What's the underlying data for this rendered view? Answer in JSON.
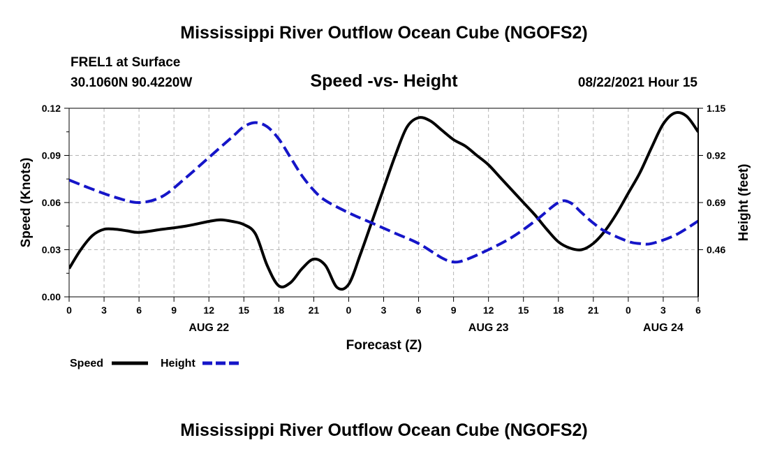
{
  "page": {
    "title_top": "Mississippi River Outflow Ocean Cube (NGOFS2)",
    "title_bottom": "Mississippi River Outflow Ocean Cube (NGOFS2)",
    "station": "FREL1 at Surface",
    "coords": "30.1060N  90.4220W",
    "date": "08/22/2021 Hour 15"
  },
  "chart_data": {
    "type": "line",
    "title": "Speed -vs- Height",
    "xlabel": "Forecast (Z)",
    "ylabel": "Speed (Knots)",
    "y2label": "Height (feet)",
    "xlim": [
      0,
      54
    ],
    "ylim": [
      0,
      0.12
    ],
    "y2lim": [
      0.23,
      1.15
    ],
    "x_ticks": [
      0,
      3,
      6,
      9,
      12,
      15,
      18,
      21,
      24,
      27,
      30,
      33,
      36,
      39,
      42,
      45,
      48,
      51,
      54
    ],
    "x_tick_labels": [
      "0",
      "3",
      "6",
      "9",
      "12",
      "15",
      "18",
      "21",
      "0",
      "3",
      "6",
      "9",
      "12",
      "15",
      "18",
      "21",
      "0",
      "3",
      "6"
    ],
    "date_labels": [
      {
        "x": 12,
        "text": "AUG 22"
      },
      {
        "x": 36,
        "text": "AUG 23"
      },
      {
        "x": 51,
        "text": "AUG 24"
      }
    ],
    "y_ticks": [
      0,
      0.03,
      0.06,
      0.09,
      0.12
    ],
    "y_tick_labels": [
      "0.00",
      "0.03",
      "0.06",
      "0.09",
      "0.12"
    ],
    "y2_ticks": [
      0.46,
      0.69,
      0.92,
      1.15
    ],
    "y2_tick_labels": [
      "0.46",
      "0.69",
      "0.92",
      "1.15"
    ],
    "grid": true,
    "legend": [
      {
        "name": "Speed",
        "color": "#000000",
        "style": "solid"
      },
      {
        "name": "Height",
        "color": "#1515c8",
        "style": "dashed"
      }
    ],
    "series": [
      {
        "name": "Speed",
        "axis": "left",
        "color": "#000000",
        "x": [
          0,
          1,
          2,
          3,
          4,
          5,
          6,
          8,
          10,
          12,
          13,
          14,
          15,
          16,
          17,
          18,
          19,
          20,
          21,
          22,
          23,
          24,
          25,
          26,
          27,
          28,
          29,
          30,
          31,
          32,
          33,
          34,
          35,
          36,
          37,
          38,
          39,
          40,
          41,
          42,
          43,
          44,
          45,
          46,
          47,
          48,
          49,
          50,
          51,
          52,
          53,
          54
        ],
        "values": [
          0.018,
          0.03,
          0.039,
          0.043,
          0.043,
          0.042,
          0.041,
          0.043,
          0.045,
          0.048,
          0.049,
          0.048,
          0.046,
          0.04,
          0.02,
          0.007,
          0.009,
          0.018,
          0.024,
          0.02,
          0.006,
          0.008,
          0.027,
          0.048,
          0.069,
          0.09,
          0.108,
          0.114,
          0.112,
          0.106,
          0.1,
          0.096,
          0.09,
          0.084,
          0.076,
          0.068,
          0.06,
          0.052,
          0.043,
          0.035,
          0.031,
          0.03,
          0.034,
          0.042,
          0.053,
          0.066,
          0.079,
          0.095,
          0.11,
          0.117,
          0.115,
          0.105
        ]
      },
      {
        "name": "Height",
        "axis": "right",
        "color": "#1515c8",
        "x": [
          0,
          2,
          4,
          6,
          8,
          10,
          12,
          14,
          15,
          16,
          17,
          18,
          19,
          20,
          21,
          22,
          24,
          26,
          28,
          30,
          32,
          33,
          34,
          36,
          38,
          40,
          42,
          43,
          44,
          45,
          46,
          48,
          49,
          50,
          52,
          54
        ],
        "values": [
          0.8,
          0.755,
          0.715,
          0.69,
          0.72,
          0.81,
          0.91,
          1.01,
          1.06,
          1.08,
          1.06,
          1.0,
          0.91,
          0.82,
          0.75,
          0.7,
          0.64,
          0.59,
          0.54,
          0.49,
          0.42,
          0.4,
          0.41,
          0.46,
          0.52,
          0.6,
          0.69,
          0.69,
          0.64,
          0.59,
          0.55,
          0.5,
          0.49,
          0.49,
          0.53,
          0.6
        ]
      }
    ]
  }
}
